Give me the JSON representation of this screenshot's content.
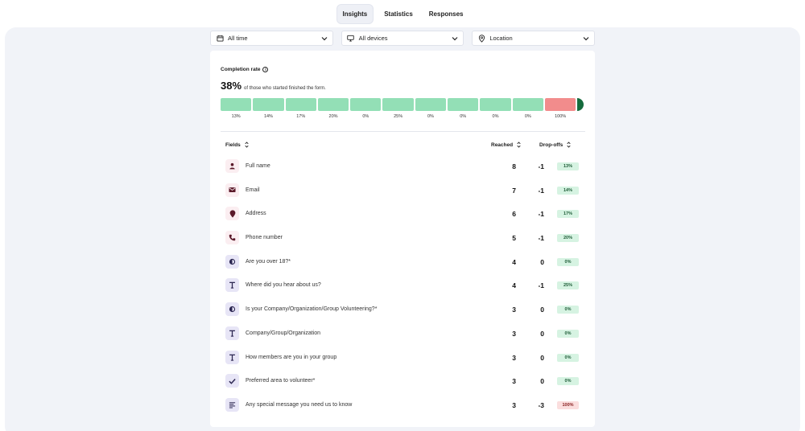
{
  "tabs": [
    {
      "label": "Insights",
      "active": true
    },
    {
      "label": "Statistics",
      "active": false
    },
    {
      "label": "Responses",
      "active": false
    }
  ],
  "filters": [
    {
      "label": "All time",
      "icon": "calendar-icon"
    },
    {
      "label": "All devices",
      "icon": "monitor-icon"
    },
    {
      "label": "Location",
      "icon": "map-pin-icon"
    }
  ],
  "completion": {
    "title": "Completion rate",
    "percent": "38%",
    "description": "of those who started finished the form.",
    "segments": [
      {
        "label": "13%",
        "status": "ok"
      },
      {
        "label": "14%",
        "status": "ok"
      },
      {
        "label": "17%",
        "status": "ok"
      },
      {
        "label": "20%",
        "status": "ok"
      },
      {
        "label": "0%",
        "status": "ok"
      },
      {
        "label": "25%",
        "status": "ok"
      },
      {
        "label": "0%",
        "status": "ok"
      },
      {
        "label": "0%",
        "status": "ok"
      },
      {
        "label": "0%",
        "status": "ok"
      },
      {
        "label": "0%",
        "status": "ok"
      },
      {
        "label": "100%",
        "status": "drop"
      }
    ]
  },
  "table": {
    "headers": {
      "fields": "Fields",
      "reached": "Reached",
      "dropoffs": "Drop-offs"
    },
    "rows": [
      {
        "icon": "person-icon",
        "tone": "pink",
        "name": "Full name",
        "reached": "8",
        "drop": "-1",
        "badge": "13%",
        "badge_tone": "green"
      },
      {
        "icon": "envelope-icon",
        "tone": "pink",
        "name": "Email",
        "reached": "7",
        "drop": "-1",
        "badge": "14%",
        "badge_tone": "green"
      },
      {
        "icon": "map-pin-icon",
        "tone": "pink",
        "name": "Address",
        "reached": "6",
        "drop": "-1",
        "badge": "17%",
        "badge_tone": "green"
      },
      {
        "icon": "phone-icon",
        "tone": "pink",
        "name": "Phone number",
        "reached": "5",
        "drop": "-1",
        "badge": "20%",
        "badge_tone": "green"
      },
      {
        "icon": "radio-choice-icon",
        "tone": "lav",
        "name": "Are you over 18?*",
        "reached": "4",
        "drop": "0",
        "badge": "0%",
        "badge_tone": "green"
      },
      {
        "icon": "text-icon",
        "tone": "lav",
        "name": "Where did you hear about us?",
        "reached": "4",
        "drop": "-1",
        "badge": "25%",
        "badge_tone": "green"
      },
      {
        "icon": "radio-choice-icon",
        "tone": "lav",
        "name": "Is your Company/Organization/Group Volunteering?*",
        "reached": "3",
        "drop": "0",
        "badge": "0%",
        "badge_tone": "green"
      },
      {
        "icon": "text-icon",
        "tone": "lav",
        "name": "Company/Group/Organization",
        "reached": "3",
        "drop": "0",
        "badge": "0%",
        "badge_tone": "green"
      },
      {
        "icon": "text-icon",
        "tone": "lav",
        "name": "How members are you in your group",
        "reached": "3",
        "drop": "0",
        "badge": "0%",
        "badge_tone": "green"
      },
      {
        "icon": "checkmark-icon",
        "tone": "lav",
        "name": "Preferred area to volunteer*",
        "reached": "3",
        "drop": "0",
        "badge": "0%",
        "badge_tone": "green"
      },
      {
        "icon": "paragraph-icon",
        "tone": "lav",
        "name": "Any special message you need us to know",
        "reached": "3",
        "drop": "-3",
        "badge": "100%",
        "badge_tone": "red"
      }
    ]
  }
}
